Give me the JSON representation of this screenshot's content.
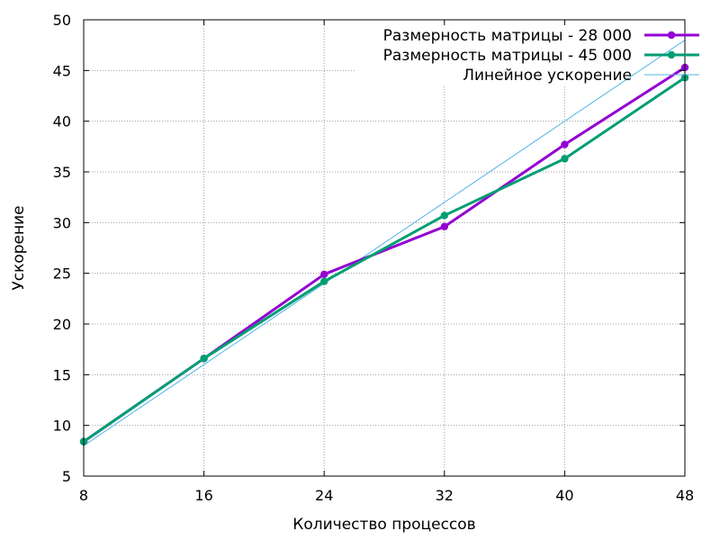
{
  "chart_data": {
    "type": "line",
    "title": "",
    "xlabel": "Количество процессов",
    "ylabel": "Ускорение",
    "xlim": [
      8,
      48
    ],
    "ylim": [
      5,
      50
    ],
    "xticks": [
      8,
      16,
      24,
      32,
      40,
      48
    ],
    "yticks": [
      5,
      10,
      15,
      20,
      25,
      30,
      35,
      40,
      45,
      50
    ],
    "grid": true,
    "legend_position": "top-right",
    "series": [
      {
        "name": "Размерность матрицы - 28 000",
        "color": "#9400d3",
        "marker": "circle",
        "x": [
          8,
          16,
          24,
          32,
          40,
          48
        ],
        "y": [
          8.4,
          16.6,
          24.9,
          29.6,
          37.7,
          45.3
        ]
      },
      {
        "name": "Размерность матрицы - 45 000",
        "color": "#009e73",
        "marker": "circle",
        "x": [
          8,
          16,
          24,
          32,
          40,
          48
        ],
        "y": [
          8.4,
          16.6,
          24.2,
          30.7,
          36.3,
          44.3
        ]
      },
      {
        "name": "Линейное ускорение",
        "color": "#56b4e9",
        "marker": "none",
        "x": [
          8,
          16,
          24,
          32,
          40,
          48
        ],
        "y": [
          8,
          16,
          24,
          32,
          40,
          48
        ]
      }
    ]
  }
}
